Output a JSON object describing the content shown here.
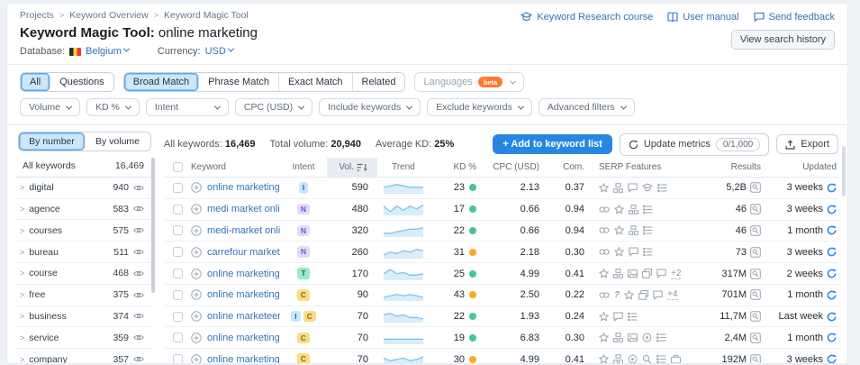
{
  "breadcrumb": [
    "Projects",
    "Keyword Overview",
    "Keyword Magic Tool"
  ],
  "header": {
    "title_bold": "Keyword Magic Tool:",
    "title_query": "online marketing",
    "database_label": "Database:",
    "database_value": "Belgium",
    "currency_label": "Currency:",
    "currency_value": "USD",
    "links": [
      {
        "icon": "course-cap-icon",
        "label": "Keyword Research course"
      },
      {
        "icon": "book-icon",
        "label": "User manual"
      },
      {
        "icon": "feedback-bubble-icon",
        "label": "Send feedback"
      }
    ],
    "view_history_label": "View search history"
  },
  "match_tabs": {
    "group1": [
      {
        "label": "All",
        "selected": true
      },
      {
        "label": "Questions",
        "selected": false
      }
    ],
    "group2": [
      {
        "label": "Broad Match",
        "selected": true
      },
      {
        "label": "Phrase Match",
        "selected": false
      },
      {
        "label": "Exact Match",
        "selected": false
      },
      {
        "label": "Related",
        "selected": false
      }
    ],
    "languages_label": "Languages",
    "languages_badge": "beta"
  },
  "filters": [
    "Volume",
    "KD %",
    "Intent",
    "CPC (USD)",
    "Include keywords",
    "Exclude keywords",
    "Advanced filters"
  ],
  "sidebar": {
    "toggle": [
      {
        "label": "By number",
        "selected": true
      },
      {
        "label": "By volume",
        "selected": false
      }
    ],
    "all_row": {
      "label": "All keywords",
      "count": "16,469"
    },
    "groups": [
      {
        "name": "digital",
        "count": "940"
      },
      {
        "name": "agence",
        "count": "583"
      },
      {
        "name": "courses",
        "count": "575"
      },
      {
        "name": "bureau",
        "count": "511"
      },
      {
        "name": "course",
        "count": "468"
      },
      {
        "name": "free",
        "count": "375"
      },
      {
        "name": "business",
        "count": "374"
      },
      {
        "name": "service",
        "count": "359"
      },
      {
        "name": "company",
        "count": "357"
      }
    ]
  },
  "summary": {
    "all_keywords_label": "All keywords:",
    "all_keywords_value": "16,469",
    "total_volume_label": "Total volume:",
    "total_volume_value": "20,940",
    "avg_kd_label": "Average KD:",
    "avg_kd_value": "25%"
  },
  "actions": {
    "add_label": "+  Add to keyword list",
    "update_label": "Update metrics",
    "update_quota": "0/1,000",
    "export_label": "Export"
  },
  "table": {
    "columns": [
      "Keyword",
      "Intent",
      "Vol.",
      "Trend",
      "KD %",
      "CPC (USD)",
      "Com.",
      "SERP Features",
      "Results",
      "Updated"
    ],
    "rows": [
      {
        "keyword": "online marketing",
        "intents": [
          "I"
        ],
        "volume": "590",
        "trend": [
          4,
          5,
          6,
          5,
          4,
          4,
          4
        ],
        "kd": "23",
        "kd_level": "green",
        "cpc": "2.13",
        "com": "0.37",
        "serp": [
          "star",
          "sitelinks",
          "comment",
          "education",
          "list"
        ],
        "more": "",
        "results": "5,2B",
        "updated": "3 weeks"
      },
      {
        "keyword": "medi market online",
        "intents": [
          "N"
        ],
        "volume": "480",
        "trend": [
          6,
          2,
          6,
          3,
          6,
          4,
          7
        ],
        "kd": "17",
        "kd_level": "green",
        "cpc": "0.66",
        "com": "0.94",
        "serp": [
          "link",
          "star",
          "sitelinks",
          "list"
        ],
        "more": "",
        "results": "46",
        "updated": "3 weeks"
      },
      {
        "keyword": "medi-market online",
        "intents": [
          "N"
        ],
        "volume": "320",
        "trend": [
          2,
          2,
          3,
          4,
          5,
          5,
          6
        ],
        "kd": "22",
        "kd_level": "green",
        "cpc": "0.66",
        "com": "0.94",
        "serp": [
          "link",
          "star",
          "sitelinks",
          "list"
        ],
        "more": "",
        "results": "46",
        "updated": "1 month"
      },
      {
        "keyword": "carrefour market online",
        "intents": [
          "N"
        ],
        "volume": "260",
        "trend": [
          2,
          4,
          3,
          5,
          4,
          6,
          5
        ],
        "kd": "31",
        "kd_level": "orange",
        "cpc": "2.18",
        "com": "0.30",
        "serp": [
          "link",
          "star",
          "comment",
          "list"
        ],
        "more": "",
        "results": "73",
        "updated": "3 weeks"
      },
      {
        "keyword": "online marketing bureau",
        "intents": [
          "T"
        ],
        "volume": "170",
        "trend": [
          4,
          7,
          4,
          5,
          3,
          3,
          4
        ],
        "kd": "25",
        "kd_level": "green",
        "cpc": "4.99",
        "com": "0.41",
        "serp": [
          "star",
          "sitelinks",
          "image",
          "images",
          "comment"
        ],
        "more": "+2",
        "results": "317M",
        "updated": "2 weeks"
      },
      {
        "keyword": "online marketing agency",
        "intents": [
          "C"
        ],
        "volume": "90",
        "trend": [
          2,
          3,
          4,
          3,
          4,
          3,
          2
        ],
        "kd": "43",
        "kd_level": "orange",
        "cpc": "2.50",
        "com": "0.22",
        "serp": [
          "link",
          "question",
          "star",
          "images",
          "comment"
        ],
        "more": "+4",
        "results": "701M",
        "updated": "1 month"
      },
      {
        "keyword": "online marketeer",
        "intents": [
          "I",
          "C"
        ],
        "volume": "70",
        "trend": [
          5,
          6,
          4,
          5,
          3,
          3,
          2
        ],
        "kd": "22",
        "kd_level": "green",
        "cpc": "1.93",
        "com": "0.24",
        "serp": [
          "star",
          "comment",
          "list"
        ],
        "more": "",
        "results": "11,7M",
        "updated": "Last week"
      },
      {
        "keyword": "online marketing bureau antwerpen",
        "intents": [
          "C"
        ],
        "volume": "70",
        "trend": [
          3,
          3,
          3,
          3,
          3,
          3,
          3
        ],
        "kd": "19",
        "kd_level": "green",
        "cpc": "6.83",
        "com": "0.30",
        "serp": [
          "star",
          "sitelinks",
          "image",
          "pin",
          "list"
        ],
        "more": "",
        "results": "2,4M",
        "updated": "1 month"
      },
      {
        "keyword": "online marketing bureaus",
        "intents": [
          "C"
        ],
        "volume": "70",
        "trend": [
          5,
          3,
          4,
          5,
          3,
          4,
          6
        ],
        "kd": "30",
        "kd_level": "orange",
        "cpc": "4.99",
        "com": "0.41",
        "serp": [
          "star",
          "sitelinks",
          "pin",
          "search",
          "list",
          "briefcase"
        ],
        "more": "",
        "results": "192M",
        "updated": "3 weeks"
      }
    ]
  },
  "colors": {
    "accent_blue": "#2787E0",
    "link_blue": "#3273B6",
    "kd_green": "#47C690",
    "kd_orange": "#FDA82A",
    "selected_tab_bg": "#CBE7FB",
    "selected_tab_border": "#5AA7E8",
    "beta_badge": "#FF7A2F",
    "intent": {
      "I": {
        "bg": "#C9E6FD",
        "fg": "#1F6DB2"
      },
      "N": {
        "bg": "#E4D9FB",
        "fg": "#7A4FD0"
      },
      "T": {
        "bg": "#9FE8C8",
        "fg": "#0E7A52"
      },
      "C": {
        "bg": "#F9DD83",
        "fg": "#8A6A00"
      }
    }
  }
}
